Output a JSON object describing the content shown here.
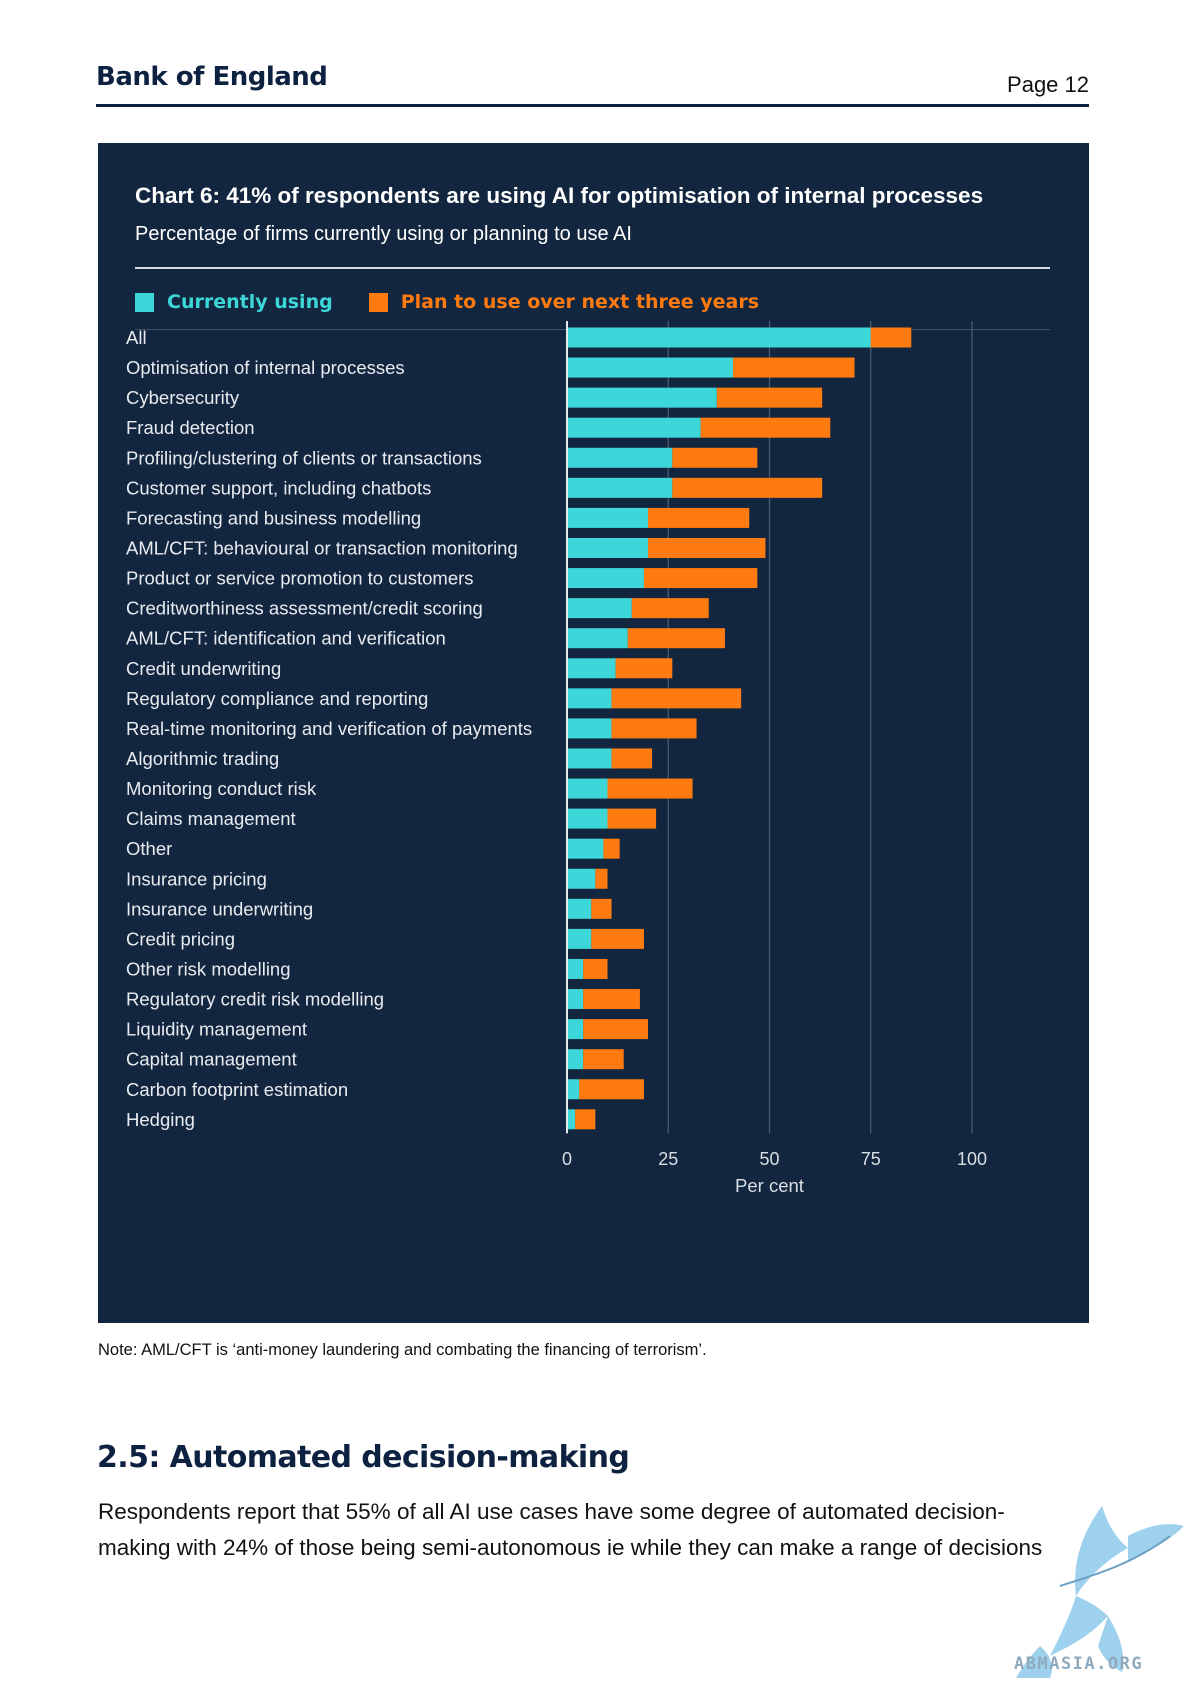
{
  "header": {
    "brand": "Bank of England",
    "page": "Page 12"
  },
  "chart_data": {
    "type": "bar",
    "orientation": "horizontal",
    "stacked": true,
    "title": "Chart 6: 41% of respondents are using AI for optimisation of internal processes",
    "subtitle": "Percentage of firms currently using or planning to use AI",
    "xlabel": "Per cent",
    "xlim": [
      0,
      100
    ],
    "xticks": [
      "0",
      "25",
      "50",
      "75",
      "100"
    ],
    "grid": true,
    "legend_position": "top-left",
    "categories": [
      "All",
      "Optimisation of internal processes",
      "Cybersecurity",
      "Fraud detection",
      "Profiling/clustering of clients or transactions",
      "Customer support, including chatbots",
      "Forecasting and business modelling",
      "AML/CFT: behavioural or transaction monitoring",
      "Product or service promotion to customers",
      "Creditworthiness assessment/credit scoring",
      "AML/CFT: identification and verification",
      "Credit underwriting",
      "Regulatory compliance and reporting",
      "Real-time monitoring and verification of payments",
      "Algorithmic trading",
      "Monitoring conduct risk",
      "Claims management",
      "Other",
      "Insurance pricing",
      "Insurance underwriting",
      "Credit pricing",
      "Other risk modelling",
      "Regulatory credit risk modelling",
      "Liquidity management",
      "Capital management",
      "Carbon footprint estimation",
      "Hedging"
    ],
    "series": [
      {
        "name": "Currently using",
        "color": "#3dd6d9",
        "values": [
          75,
          41,
          37,
          33,
          26,
          26,
          20,
          20,
          19,
          16,
          15,
          12,
          11,
          11,
          11,
          10,
          10,
          9,
          7,
          6,
          6,
          4,
          4,
          4,
          4,
          3,
          2
        ]
      },
      {
        "name": "Plan to use over next three years",
        "color": "#ff7a0f",
        "values": [
          10,
          30,
          26,
          32,
          21,
          37,
          25,
          29,
          28,
          19,
          24,
          14,
          32,
          21,
          10,
          21,
          12,
          4,
          3,
          5,
          13,
          6,
          14,
          16,
          10,
          16,
          5
        ]
      }
    ]
  },
  "note": "Note: AML/CFT is ‘anti-money laundering and combating the financing of terrorism’.",
  "section": {
    "heading": "2.5: Automated decision-making",
    "line1": "Respondents report that 55% of all AI use cases have some degree of automated decision-",
    "line2": "making with 24% of those being semi-autonomous ie while they can make a range of decisions"
  },
  "watermark": {
    "text": "ABMASIA.ORG",
    "icon": "griffin-logo-icon"
  }
}
